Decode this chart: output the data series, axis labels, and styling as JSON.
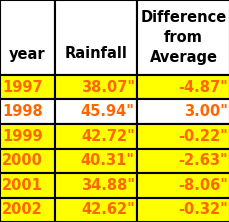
{
  "headers": [
    "year",
    "Rainfall",
    "Difference\nfrom\nAverage"
  ],
  "rows": [
    [
      "1997",
      "38.07\"",
      "-4.87\""
    ],
    [
      "1998",
      "45.94\"",
      "3.00\""
    ],
    [
      "1999",
      "42.72\"",
      "-0.22\""
    ],
    [
      "2000",
      "40.31\"",
      "-2.63\""
    ],
    [
      "2001",
      "34.88\"",
      "-8.06\""
    ],
    [
      "2002",
      "42.62\"",
      "-0.32\""
    ]
  ],
  "row_colors": [
    [
      "#FFFF00",
      "#FFFF00",
      "#FFFF00"
    ],
    [
      "#FFFFFF",
      "#FFFFFF",
      "#FFFFFF"
    ],
    [
      "#FFFF00",
      "#FFFF00",
      "#FFFF00"
    ],
    [
      "#FFFF00",
      "#FFFF00",
      "#FFFF00"
    ],
    [
      "#FFFF00",
      "#FFFF00",
      "#FFFF00"
    ],
    [
      "#FFFF00",
      "#FFFF00",
      "#FFFF00"
    ]
  ],
  "header_color": "#FFFFFF",
  "text_color": "#FF6600",
  "header_text_color": "#000000",
  "figsize": [
    2.3,
    2.22
  ],
  "dpi": 100,
  "font_size": 10.5,
  "header_font_size": 10.5
}
